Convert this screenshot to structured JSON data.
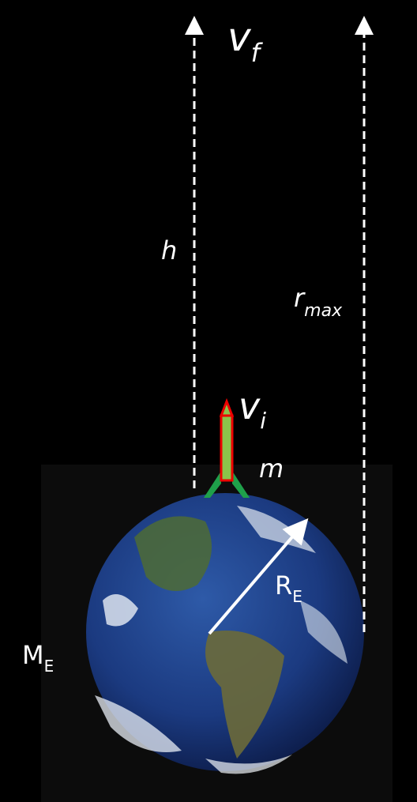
{
  "labels": {
    "final_velocity": {
      "main": "v",
      "sub": "f"
    },
    "height": {
      "main": "h"
    },
    "max_radius": {
      "main": "r",
      "sub": "max"
    },
    "initial_velocity": {
      "main": "v",
      "sub": "i"
    },
    "mass": {
      "main": "m"
    },
    "earth_radius": {
      "main": "R",
      "sub": "E"
    },
    "earth_mass": {
      "main": "M",
      "sub": "E"
    }
  }
}
